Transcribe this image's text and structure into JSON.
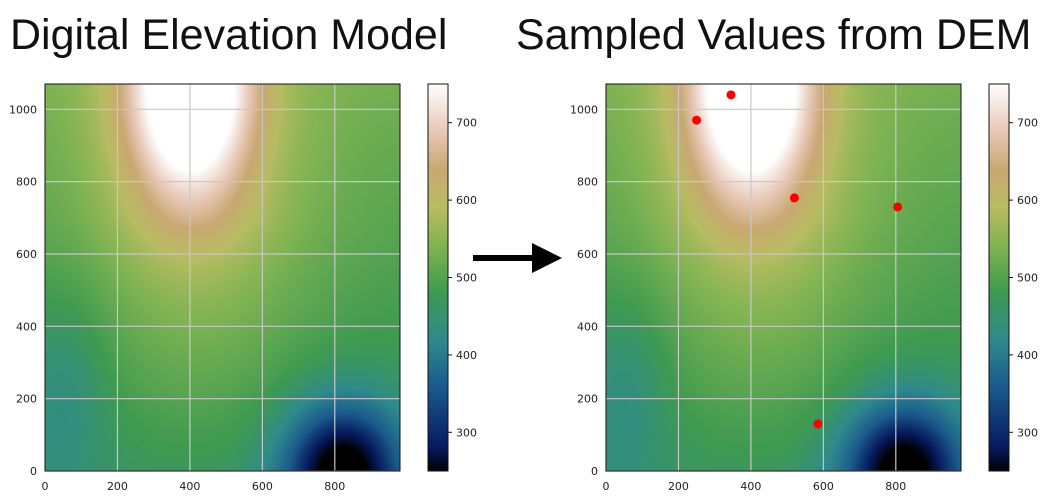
{
  "titles": {
    "left": "Digital Elevation Model",
    "right": "Sampled Values from DEM"
  },
  "arrow": {
    "direction": "right",
    "color": "#000000"
  },
  "chart_data": [
    {
      "type": "heatmap",
      "title": "Digital Elevation Model",
      "xlim": [
        0,
        980
      ],
      "ylim": [
        0,
        1070
      ],
      "x_ticks": [
        0,
        200,
        400,
        600,
        800
      ],
      "y_ticks": [
        0,
        200,
        400,
        600,
        800,
        1000
      ],
      "grid": true,
      "colormap": "gist_earth",
      "colorbar": {
        "range": [
          250,
          750
        ],
        "ticks": [
          300,
          400,
          500,
          600,
          700
        ]
      },
      "elevation_features": [
        {
          "feature": "high",
          "x": 400,
          "y": 1070,
          "value": 750
        },
        {
          "feature": "low",
          "x": 820,
          "y": 0,
          "value": 250
        }
      ]
    },
    {
      "type": "scatter",
      "title": "Sampled Values from DEM",
      "xlim": [
        0,
        980
      ],
      "ylim": [
        0,
        1070
      ],
      "x_ticks": [
        0,
        200,
        400,
        600,
        800
      ],
      "y_ticks": [
        0,
        200,
        400,
        600,
        800,
        1000
      ],
      "grid": true,
      "background": "same DEM heatmap",
      "colorbar": {
        "range": [
          250,
          750
        ],
        "ticks": [
          300,
          400,
          500,
          600,
          700
        ]
      },
      "marker_color": "#ff0000",
      "points": [
        {
          "x": 250,
          "y": 970
        },
        {
          "x": 345,
          "y": 1040
        },
        {
          "x": 520,
          "y": 755
        },
        {
          "x": 805,
          "y": 730
        },
        {
          "x": 585,
          "y": 130
        }
      ]
    }
  ]
}
